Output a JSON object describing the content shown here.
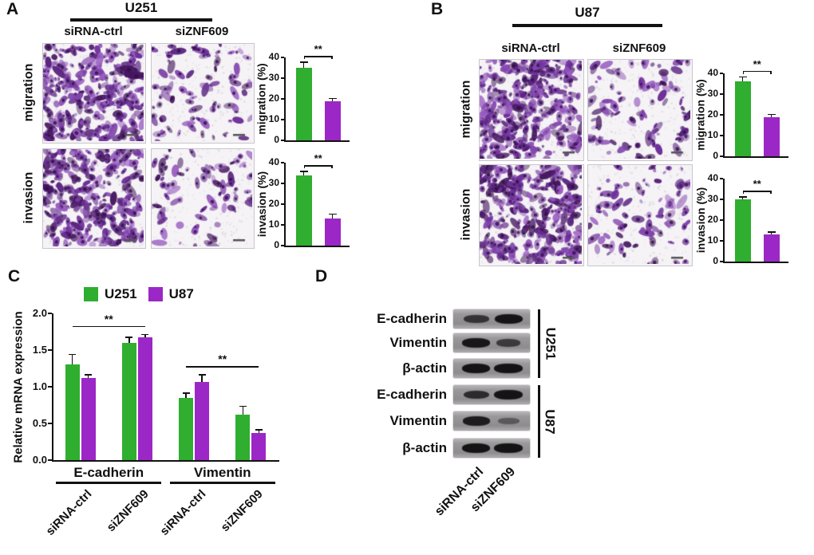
{
  "colors": {
    "green": "#2fae2f",
    "purple": "#9c27c7",
    "stain": "#6d2f99",
    "blot_band": "#141414",
    "axis": "#111111"
  },
  "panelA": {
    "label": "A",
    "cell_line": "U251",
    "col_labels": [
      "siRNA-ctrl",
      "siZNF609"
    ],
    "row_labels": [
      "migration",
      "invasion"
    ]
  },
  "panelB": {
    "label": "B",
    "cell_line": "U87",
    "col_labels": [
      "siRNA-ctrl",
      "siZNF609"
    ],
    "row_labels": [
      "migration",
      "invasion"
    ]
  },
  "panelC": {
    "label": "C"
  },
  "panelD": {
    "label": "D",
    "lane_labels": [
      "siRNA-ctrl",
      "siZNF609"
    ],
    "groups": [
      {
        "cell_line": "U251",
        "rows": [
          {
            "protein": "E-cadherin",
            "bands": [
              0.62,
              0.92
            ]
          },
          {
            "protein": "Vimentin",
            "bands": [
              0.9,
              0.55
            ]
          },
          {
            "protein": "β-actin",
            "bands": [
              0.95,
              0.95
            ]
          }
        ]
      },
      {
        "cell_line": "U87",
        "rows": [
          {
            "protein": "E-cadherin",
            "bands": [
              0.7,
              0.97
            ]
          },
          {
            "protein": "Vimentin",
            "bands": [
              0.85,
              0.25
            ]
          },
          {
            "protein": "β-actin",
            "bands": [
              0.95,
              0.95
            ]
          }
        ]
      }
    ]
  },
  "chart_data": [
    {
      "panel": "A",
      "type": "bar",
      "title": "U251 migration",
      "ylabel": "migration (%)",
      "categories": [
        "siRNA-ctrl",
        "siZNF609"
      ],
      "values": [
        35,
        19
      ],
      "errors": [
        3,
        1.5
      ],
      "ylim": [
        0,
        40
      ],
      "yticks": [
        "0",
        "10",
        "20",
        "30",
        "40"
      ],
      "colors": [
        "#2fae2f",
        "#9c27c7"
      ],
      "sig": "**"
    },
    {
      "panel": "A",
      "type": "bar",
      "title": "U251 invasion",
      "ylabel": "invasion (%)",
      "categories": [
        "siRNA-ctrl",
        "siZNF609"
      ],
      "values": [
        34,
        13
      ],
      "errors": [
        2,
        2.5
      ],
      "ylim": [
        0,
        40
      ],
      "yticks": [
        "0",
        "10",
        "20",
        "30",
        "40"
      ],
      "colors": [
        "#2fae2f",
        "#9c27c7"
      ],
      "sig": "**"
    },
    {
      "panel": "B",
      "type": "bar",
      "title": "U87 migration",
      "ylabel": "migration (%)",
      "categories": [
        "siRNA-ctrl",
        "siZNF609"
      ],
      "values": [
        36,
        19
      ],
      "errors": [
        2.5,
        1.5
      ],
      "ylim": [
        0,
        40
      ],
      "yticks": [
        "0",
        "10",
        "20",
        "30",
        "40"
      ],
      "colors": [
        "#2fae2f",
        "#9c27c7"
      ],
      "sig": "**"
    },
    {
      "panel": "B",
      "type": "bar",
      "title": "U87 invasion",
      "ylabel": "invasion (%)",
      "categories": [
        "siRNA-ctrl",
        "siZNF609"
      ],
      "values": [
        30,
        13
      ],
      "errors": [
        1.5,
        1.5
      ],
      "ylim": [
        0,
        40
      ],
      "yticks": [
        "0",
        "10",
        "20",
        "30",
        "40"
      ],
      "colors": [
        "#2fae2f",
        "#9c27c7"
      ],
      "sig": "**"
    },
    {
      "panel": "C",
      "type": "grouped-bar",
      "title": "Relative mRNA expression",
      "ylabel": "Relative mRNA expression",
      "ylim": [
        0,
        2
      ],
      "yticks": [
        "0.0",
        "0.5",
        "1.0",
        "1.5",
        "2.0"
      ],
      "group_labels": [
        "siRNA-ctrl",
        "siZNF609",
        "siRNA-ctrl",
        "siZNF609"
      ],
      "gene_labels": [
        "E-cadherin",
        "Vimentin"
      ],
      "series": [
        {
          "name": "U251",
          "color": "#2fae2f",
          "values": [
            1.3,
            1.6,
            0.85,
            0.62
          ],
          "errors": [
            0.15,
            0.08,
            0.07,
            0.12
          ]
        },
        {
          "name": "U87",
          "color": "#9c27c7",
          "values": [
            1.12,
            1.67,
            1.07,
            0.37
          ],
          "errors": [
            0.05,
            0.05,
            0.1,
            0.05
          ]
        }
      ],
      "sig": [
        {
          "label": "**",
          "from": 0,
          "to": 1
        },
        {
          "label": "**",
          "from": 2,
          "to": 3
        }
      ]
    }
  ]
}
